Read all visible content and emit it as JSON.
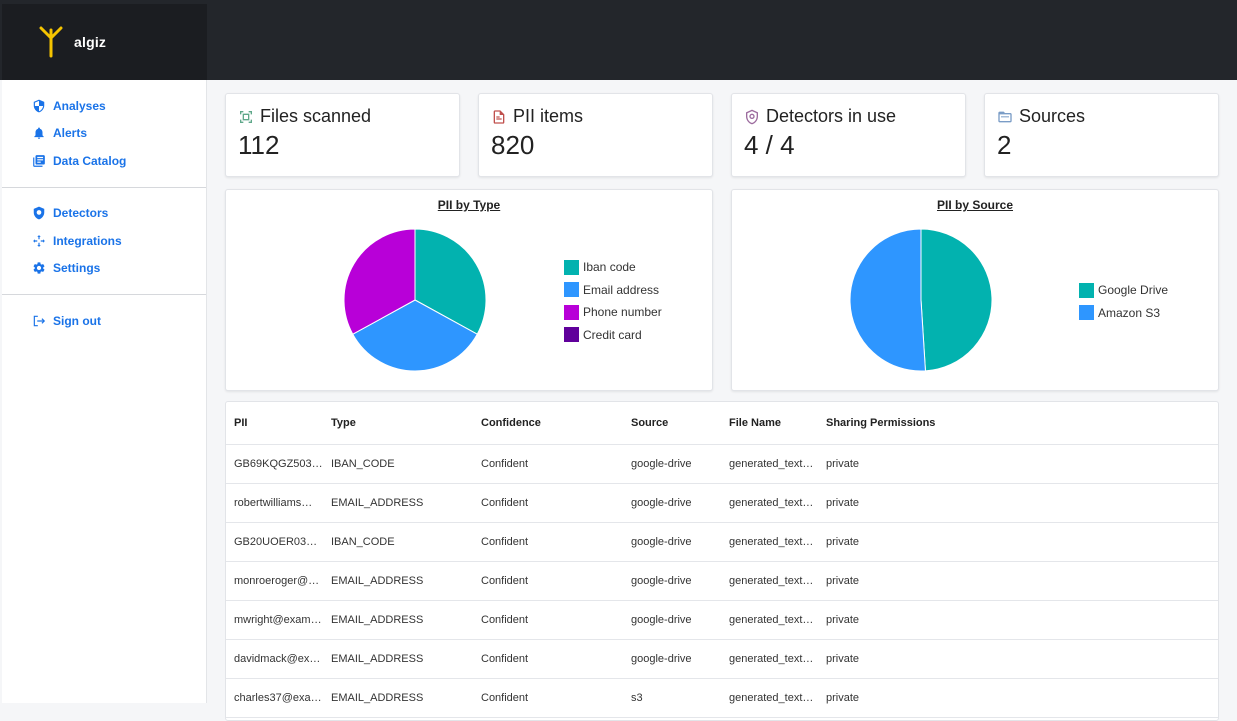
{
  "app": {
    "logo_text": "algiz"
  },
  "sidebar": {
    "group1": [
      {
        "label": "Analyses",
        "icon": "shield-icon"
      },
      {
        "label": "Alerts",
        "icon": "bell-icon"
      },
      {
        "label": "Data Catalog",
        "icon": "catalog-icon"
      }
    ],
    "group2": [
      {
        "label": "Detectors",
        "icon": "detector-icon"
      },
      {
        "label": "Integrations",
        "icon": "integrations-icon"
      },
      {
        "label": "Settings",
        "icon": "gear-icon"
      }
    ],
    "group3": [
      {
        "label": "Sign out",
        "icon": "sign-out-icon"
      }
    ]
  },
  "stats": [
    {
      "title": "Files scanned",
      "value": "112",
      "icon": "scan-icon"
    },
    {
      "title": "PII items",
      "value": "820",
      "icon": "document-icon"
    },
    {
      "title": "Detectors in use",
      "value": "4 / 4",
      "icon": "detector-shield-icon"
    },
    {
      "title": "Sources",
      "value": "2",
      "icon": "folder-icon"
    }
  ],
  "colors": {
    "teal": "#02b2af",
    "blue": "#2e96ff",
    "purple": "#b800d8",
    "dark_purple": "#60009b",
    "nav": "#1a73e8"
  },
  "chart_data": [
    {
      "type": "pie",
      "title": "PII by Type",
      "categories": [
        "Iban code",
        "Email address",
        "Phone number",
        "Credit card"
      ],
      "values": [
        33,
        34,
        33,
        0
      ]
    },
    {
      "type": "pie",
      "title": "PII by Source",
      "categories": [
        "Google Drive",
        "Amazon S3"
      ],
      "values": [
        49,
        51
      ]
    }
  ],
  "table": {
    "headers": [
      "PII",
      "Type",
      "Confidence",
      "Source",
      "File Name",
      "Sharing Permissions"
    ],
    "rows": [
      [
        "GB69KQGZ503…",
        "IBAN_CODE",
        "Confident",
        "google-drive",
        "generated_text…",
        "private"
      ],
      [
        "robertwilliams…",
        "EMAIL_ADDRESS",
        "Confident",
        "google-drive",
        "generated_text…",
        "private"
      ],
      [
        "GB20UOER037…",
        "IBAN_CODE",
        "Confident",
        "google-drive",
        "generated_text…",
        "private"
      ],
      [
        "monroeroger@…",
        "EMAIL_ADDRESS",
        "Confident",
        "google-drive",
        "generated_text…",
        "private"
      ],
      [
        "mwright@exam…",
        "EMAIL_ADDRESS",
        "Confident",
        "google-drive",
        "generated_text…",
        "private"
      ],
      [
        "davidmack@ex…",
        "EMAIL_ADDRESS",
        "Confident",
        "google-drive",
        "generated_text…",
        "private"
      ],
      [
        "charles37@exa…",
        "EMAIL_ADDRESS",
        "Confident",
        "s3",
        "generated_text…",
        "private"
      ]
    ]
  }
}
